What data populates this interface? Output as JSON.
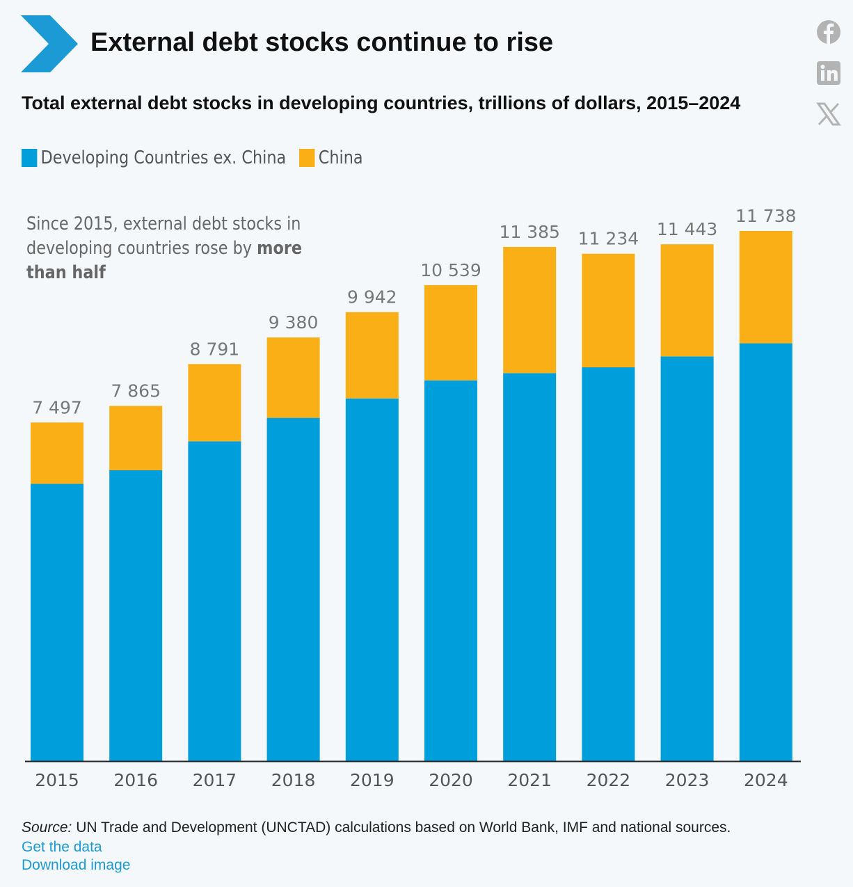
{
  "header": {
    "title": "External debt stocks continue to rise",
    "subtitle": "Total external debt stocks in developing countries, trillions of dollars, 2015–2024"
  },
  "colors": {
    "accent": "#1c9ad6",
    "ex_china": "#009edb",
    "china": "#fbaf17",
    "social_icons": "#b3b3b3"
  },
  "social": [
    "facebook-icon",
    "linkedin-icon",
    "x-icon"
  ],
  "legend": {
    "ex_china": "Developing Countries ex. China",
    "china": "China"
  },
  "annotation": {
    "text": "Since 2015, external debt stocks in developing countries rose by ",
    "bold": "more than half"
  },
  "chart_data": {
    "type": "bar",
    "stacked": true,
    "categories": [
      "2015",
      "2016",
      "2017",
      "2018",
      "2019",
      "2020",
      "2021",
      "2022",
      "2023",
      "2024"
    ],
    "series": [
      {
        "name": "Developing Countries ex. China",
        "color": "#009edb",
        "values": [
          6140,
          6440,
          7080,
          7600,
          8030,
          8430,
          8590,
          8720,
          8960,
          9250
        ]
      },
      {
        "name": "China",
        "color": "#fbaf17",
        "values": [
          1357,
          1425,
          1711,
          1780,
          1912,
          2109,
          2795,
          2514,
          2483,
          2488
        ]
      }
    ],
    "totals": [
      7497,
      7865,
      8791,
      9380,
      9942,
      10539,
      11385,
      11234,
      11443,
      11738
    ],
    "total_labels": [
      "7 497",
      "7 865",
      "8 791",
      "9 380",
      "9 942",
      "10 539",
      "11 385",
      "11 234",
      "11 443",
      "11 738"
    ],
    "ylim": [
      0,
      11738
    ],
    "grid": false,
    "legend_position": "top-left"
  },
  "footer": {
    "source_label": "Source:",
    "source_text": " UN Trade and Development (UNCTAD) calculations based on World Bank, IMF and national sources.",
    "get_data": "Get the data",
    "download": "Download image"
  }
}
